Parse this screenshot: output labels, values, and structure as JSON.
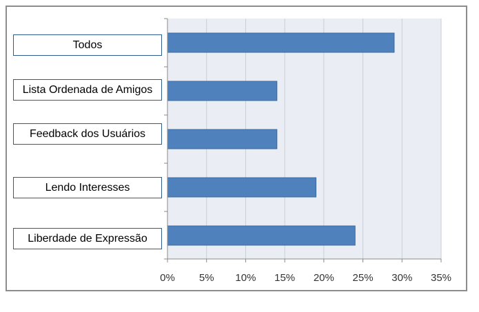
{
  "chart_data": {
    "type": "bar",
    "orientation": "horizontal",
    "categories": [
      "Todos",
      "Lista Ordenada de Amigos",
      "Feedback dos Usuários",
      "Lendo Interesses",
      "Liberdade de Expressão"
    ],
    "values": [
      29,
      14,
      14,
      19,
      24
    ],
    "xlim": [
      0,
      35
    ],
    "xticks": [
      "0%",
      "5%",
      "10%",
      "15%",
      "20%",
      "25%",
      "30%",
      "35%"
    ],
    "tick_step": 5,
    "grid": true,
    "colors": {
      "bar": "#4f81bd",
      "bar_edge": "#3a6aa5",
      "plot_bg": "#eaeef4",
      "grid": "#c9ced6"
    }
  }
}
